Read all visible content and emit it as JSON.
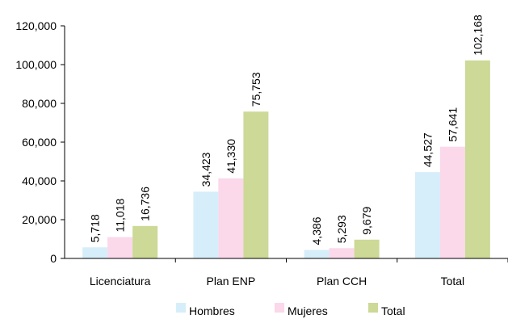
{
  "chart_data": {
    "type": "bar",
    "categories": [
      "Licenciatura",
      "Plan ENP",
      "Plan CCH",
      "Total"
    ],
    "series": [
      {
        "name": "Hombres",
        "values": [
          5718,
          34423,
          4386,
          44527
        ],
        "labels": [
          "5,718",
          "34,423",
          "4,386",
          "44,527"
        ],
        "color": "#d6eef9"
      },
      {
        "name": "Mujeres",
        "values": [
          11018,
          41330,
          5293,
          57641
        ],
        "labels": [
          "11,018",
          "41,330",
          "5,293",
          "57,641"
        ],
        "color": "#fbd8ea"
      },
      {
        "name": "Total",
        "values": [
          16736,
          75753,
          9679,
          102168
        ],
        "labels": [
          "16,736",
          "75,753",
          "9,679",
          "102,168"
        ],
        "color": "#ccd997"
      }
    ],
    "ylim": [
      0,
      120000
    ],
    "yticks": [
      0,
      20000,
      40000,
      60000,
      80000,
      100000,
      120000
    ],
    "ytick_labels": [
      "0",
      "20,000",
      "40,000",
      "60,000",
      "80,000",
      "100,000",
      "120,000"
    ],
    "grid": false,
    "legend_position": "bottom"
  }
}
